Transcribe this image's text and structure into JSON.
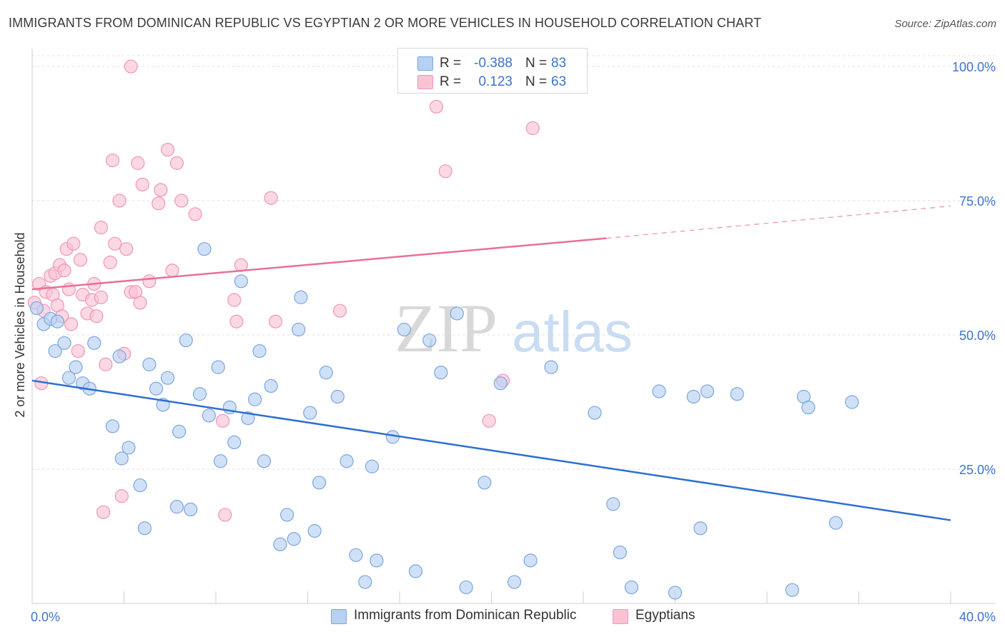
{
  "title": "IMMIGRANTS FROM DOMINICAN REPUBLIC VS EGYPTIAN 2 OR MORE VEHICLES IN HOUSEHOLD CORRELATION CHART",
  "source": "Source: ZipAtlas.com",
  "watermark": {
    "zip": "ZIP",
    "atlas": "atlas"
  },
  "colors": {
    "blue_fill": "#b7d1f3",
    "blue_stroke": "#7aa6e0",
    "blue_line": "#2d6fcf",
    "pink_fill": "#f9c3d4",
    "pink_stroke": "#ee97b4",
    "pink_line": "#e8709a",
    "value_text": "#3d74c9"
  },
  "legend_top": {
    "rows": [
      {
        "r_label": "R =",
        "r_value": "-0.388",
        "n_label": "N =",
        "n_value": "83"
      },
      {
        "r_label": "R =",
        "r_value": "0.123",
        "n_label": "N =",
        "n_value": "63"
      }
    ]
  },
  "legend_bottom": {
    "items": [
      "Immigrants from Dominican Republic",
      "Egyptians"
    ]
  },
  "chart_data": {
    "type": "scatter",
    "title": "IMMIGRANTS FROM DOMINICAN REPUBLIC VS EGYPTIAN 2 OR MORE VEHICLES IN HOUSEHOLD CORRELATION CHART",
    "xlabel": "",
    "ylabel": "2 or more Vehicles in Household",
    "xlim": [
      0,
      40
    ],
    "ylim": [
      0,
      102
    ],
    "x_tick_labels": [
      "0.0%",
      "40.0%"
    ],
    "y_ticks": [
      25,
      50,
      75,
      100
    ],
    "y_tick_labels": [
      "25.0%",
      "50.0%",
      "75.0%",
      "100.0%"
    ],
    "grid": true,
    "legend_position": "top-center",
    "series": [
      {
        "name": "Immigrants from Dominican Republic",
        "color": "#b7d1f3",
        "trend": {
          "x": [
            0,
            40
          ],
          "y": [
            41.5,
            15.5
          ],
          "extrapolated_from": null
        },
        "points": [
          [
            0.2,
            55
          ],
          [
            0.5,
            52
          ],
          [
            0.8,
            53
          ],
          [
            1.0,
            47
          ],
          [
            1.1,
            52.5
          ],
          [
            1.4,
            48.5
          ],
          [
            1.6,
            42
          ],
          [
            1.9,
            44
          ],
          [
            2.2,
            41
          ],
          [
            2.5,
            40
          ],
          [
            2.7,
            48.5
          ],
          [
            3.5,
            33
          ],
          [
            3.8,
            46
          ],
          [
            3.9,
            27
          ],
          [
            4.2,
            29
          ],
          [
            4.7,
            22
          ],
          [
            4.9,
            14
          ],
          [
            5.1,
            44.5
          ],
          [
            5.4,
            40
          ],
          [
            5.7,
            37
          ],
          [
            5.9,
            42
          ],
          [
            6.3,
            18
          ],
          [
            6.4,
            32
          ],
          [
            6.7,
            49
          ],
          [
            6.9,
            17.5
          ],
          [
            7.3,
            39
          ],
          [
            7.7,
            35
          ],
          [
            7.5,
            66
          ],
          [
            8.1,
            44
          ],
          [
            8.2,
            26.5
          ],
          [
            8.6,
            36.5
          ],
          [
            8.8,
            30
          ],
          [
            9.1,
            60
          ],
          [
            9.4,
            34.5
          ],
          [
            9.7,
            38
          ],
          [
            9.9,
            47
          ],
          [
            10.1,
            26.5
          ],
          [
            10.4,
            40.5
          ],
          [
            10.8,
            11
          ],
          [
            11.1,
            16.5
          ],
          [
            11.4,
            12
          ],
          [
            11.6,
            51
          ],
          [
            11.7,
            57
          ],
          [
            12.1,
            35.5
          ],
          [
            12.3,
            13.5
          ],
          [
            12.5,
            22.5
          ],
          [
            12.8,
            43
          ],
          [
            13.3,
            38.5
          ],
          [
            13.7,
            26.5
          ],
          [
            14.1,
            9
          ],
          [
            14.5,
            4
          ],
          [
            14.8,
            25.5
          ],
          [
            15.0,
            8
          ],
          [
            15.7,
            31
          ],
          [
            16.2,
            51
          ],
          [
            16.7,
            6
          ],
          [
            17.3,
            49
          ],
          [
            17.8,
            43
          ],
          [
            18.5,
            54
          ],
          [
            18.9,
            3
          ],
          [
            19.7,
            22.5
          ],
          [
            20.4,
            41
          ],
          [
            21.0,
            4
          ],
          [
            21.7,
            8
          ],
          [
            22.6,
            44
          ],
          [
            24.5,
            35.5
          ],
          [
            25.3,
            18.5
          ],
          [
            25.6,
            9.5
          ],
          [
            26.1,
            3
          ],
          [
            27.3,
            39.5
          ],
          [
            28.0,
            2
          ],
          [
            28.8,
            38.5
          ],
          [
            29.1,
            14
          ],
          [
            29.4,
            39.5
          ],
          [
            30.7,
            39
          ],
          [
            33.1,
            2.5
          ],
          [
            33.6,
            38.5
          ],
          [
            33.8,
            36.5
          ],
          [
            35.0,
            15
          ],
          [
            35.7,
            37.5
          ]
        ]
      },
      {
        "name": "Egyptians",
        "color": "#f9c3d4",
        "trend": {
          "x": [
            0,
            25,
            40
          ],
          "y": [
            58.5,
            68,
            74
          ],
          "extrapolated_from": 25
        },
        "points": [
          [
            0.1,
            56
          ],
          [
            0.3,
            59.5
          ],
          [
            0.4,
            41
          ],
          [
            0.5,
            54.5
          ],
          [
            0.6,
            58
          ],
          [
            0.8,
            61
          ],
          [
            0.9,
            57.5
          ],
          [
            1.0,
            61.5
          ],
          [
            1.1,
            55.5
          ],
          [
            1.2,
            63
          ],
          [
            1.3,
            53.5
          ],
          [
            1.4,
            62
          ],
          [
            1.5,
            66
          ],
          [
            1.6,
            58.5
          ],
          [
            1.7,
            52
          ],
          [
            1.8,
            67
          ],
          [
            2.0,
            47
          ],
          [
            2.1,
            64
          ],
          [
            2.2,
            57.5
          ],
          [
            2.4,
            54
          ],
          [
            2.6,
            56.5
          ],
          [
            2.7,
            59.5
          ],
          [
            2.8,
            53.5
          ],
          [
            3.0,
            57
          ],
          [
            3.0,
            70
          ],
          [
            3.1,
            17
          ],
          [
            3.2,
            44.5
          ],
          [
            3.4,
            63.5
          ],
          [
            3.5,
            82.5
          ],
          [
            3.6,
            67
          ],
          [
            3.8,
            75
          ],
          [
            3.9,
            20
          ],
          [
            4.0,
            46.5
          ],
          [
            4.1,
            66
          ],
          [
            4.3,
            58
          ],
          [
            4.5,
            58
          ],
          [
            4.6,
            82
          ],
          [
            4.7,
            56
          ],
          [
            4.8,
            78
          ],
          [
            5.1,
            60
          ],
          [
            5.5,
            74.5
          ],
          [
            5.6,
            77
          ],
          [
            5.9,
            84.5
          ],
          [
            6.1,
            62
          ],
          [
            6.3,
            82
          ],
          [
            6.5,
            75
          ],
          [
            7.1,
            72.5
          ],
          [
            8.3,
            34
          ],
          [
            8.4,
            16.5
          ],
          [
            8.8,
            56.5
          ],
          [
            8.9,
            52.5
          ],
          [
            9.1,
            63
          ],
          [
            10.4,
            75.5
          ],
          [
            10.6,
            52.5
          ],
          [
            13.4,
            54.5
          ],
          [
            17.6,
            92.5
          ],
          [
            18.0,
            80.5
          ],
          [
            19.9,
            34
          ],
          [
            20.5,
            41.5
          ],
          [
            21.8,
            88.5
          ],
          [
            4.3,
            100
          ]
        ]
      }
    ]
  }
}
